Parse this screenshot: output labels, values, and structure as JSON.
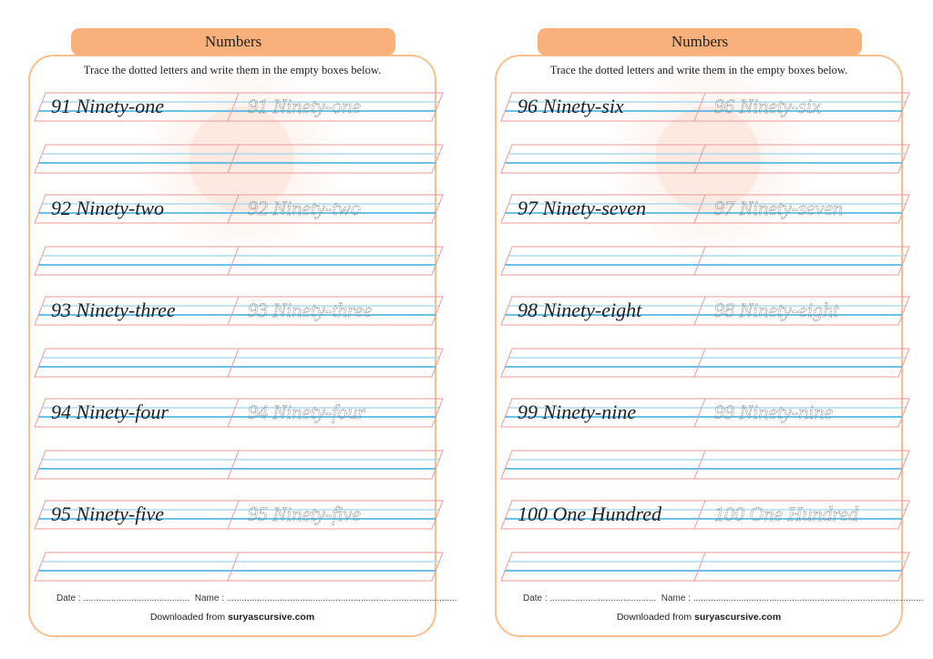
{
  "pages": [
    {
      "title": "Numbers",
      "instruction": "Trace the dotted letters and write them in the empty boxes below.",
      "words": [
        "91 Ninety-one",
        "92 Ninety-two",
        "93 Ninety-three",
        "94 Ninety-four",
        "95 Ninety-five"
      ],
      "date_label": "Date : ..........................................",
      "name_label": "Name : ...........................................................................................",
      "download_prefix": "Downloaded from ",
      "download_site": "suryascursive.com"
    },
    {
      "title": "Numbers",
      "instruction": "Trace the dotted letters and write them in the empty boxes below.",
      "words": [
        "96 Ninety-six",
        "97 Ninety-seven",
        "98 Ninety-eight",
        "99 Ninety-nine",
        "100 One Hundred"
      ],
      "date_label": "Date : ..........................................",
      "name_label": "Name : ...........................................................................................",
      "download_prefix": "Downloaded from ",
      "download_site": "suryascursive.com"
    }
  ],
  "colors": {
    "accent": "#f9b07a",
    "frame": "#f9c08f",
    "guide_red": "#e89a9a",
    "guide_blue": "#3aaee0",
    "guide_lightblue": "#a9dcf2"
  }
}
